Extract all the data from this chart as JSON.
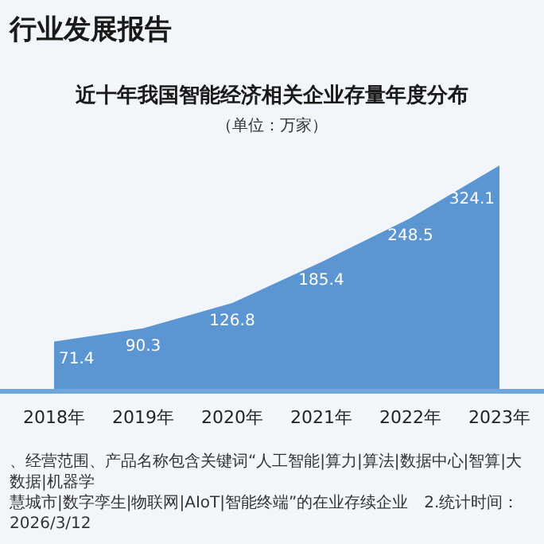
{
  "chart_data": {
    "type": "area",
    "title": "近十年我国智能经济相关企业存量年度分布",
    "subtitle": "（单位：万家）",
    "categories": [
      "2018年",
      "2019年",
      "2020年",
      "2021年",
      "2022年",
      "2023年"
    ],
    "values": [
      71.4,
      90.3,
      126.8,
      185.4,
      248.5,
      324.1
    ],
    "color": "#5b96d3",
    "data_labels": true,
    "annotations": [
      "行业发展报告",
      "、经营范围、产品名称包含关键词“人工智能|算力|算法|数据中心|智算|大数据|机器学",
      "慧城市|数字孪生|物联网|AIoT|智能终端”的在业存续企业　2.统计时间：2026/3/12"
    ]
  }
}
